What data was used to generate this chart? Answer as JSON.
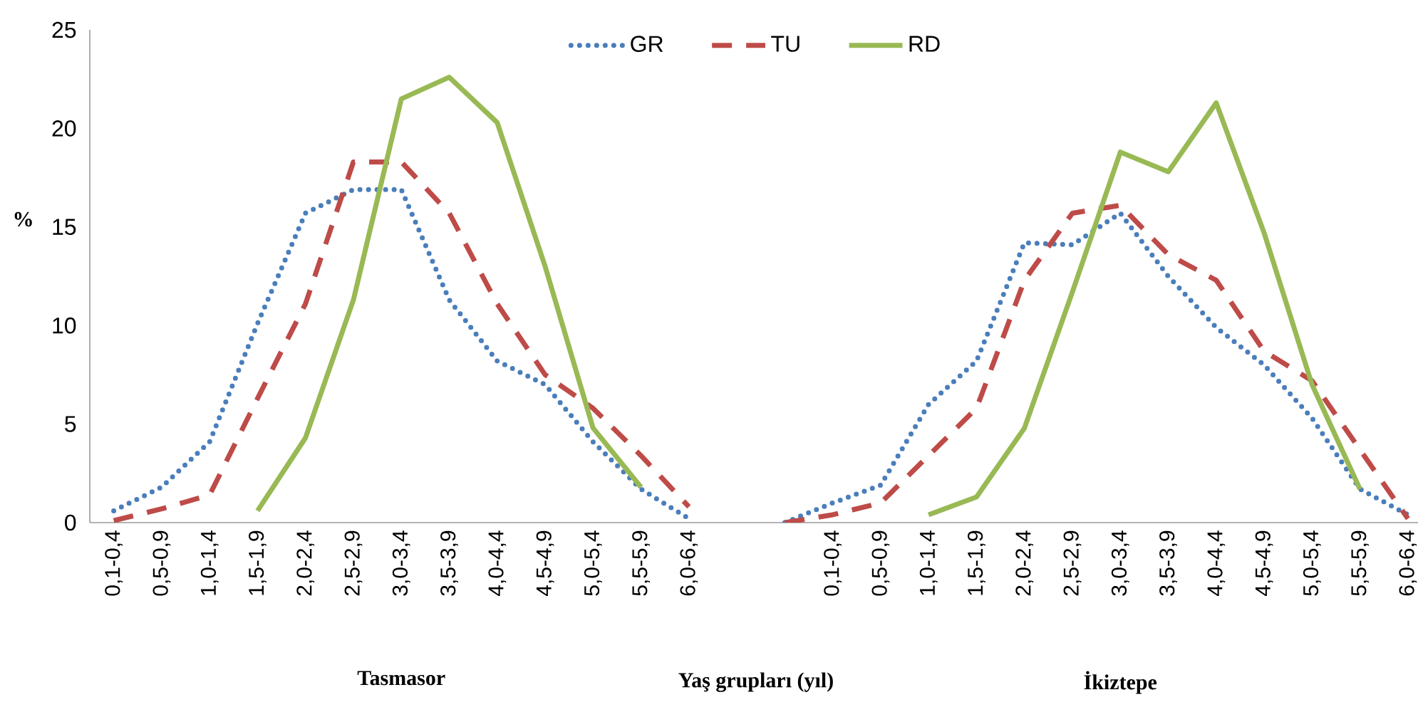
{
  "chart_data": {
    "type": "line",
    "xlabel": "Yaş grupları (yıl)",
    "ylabel": "%",
    "categories": [
      "0,1-0,4",
      "0,5-0,9",
      "1,0-1,4",
      "1,5-1,9",
      "2,0-2,4",
      "2,5-2,9",
      "3,0-3,4",
      "3,5-3,9",
      "4,0-4,4",
      "4,5-4,9",
      "5,0-5,4",
      "5,5-5,9",
      "6,0-6,4",
      null,
      null,
      "0,1-0,4",
      "0,5-0,9",
      "1,0-1,4",
      "1,5-1,9",
      "2,0-2,4",
      "2,5-2,9",
      "3,0-3,4",
      "3,5-3,9",
      "4,0-4,4",
      "4,5-4,9",
      "5,0-5,4",
      "5,5-5,9",
      "6,0-6,4"
    ],
    "series": [
      {
        "name": "GR",
        "color": "#4a7ebb",
        "line_style": "dotted",
        "values": [
          0.6,
          1.8,
          4.1,
          10.1,
          15.7,
          16.9,
          16.9,
          11.3,
          8.2,
          7.0,
          4.1,
          1.7,
          0.2,
          null,
          0,
          1.0,
          1.9,
          6.0,
          8.2,
          14.2,
          14.1,
          15.7,
          12.5,
          9.9,
          8.0,
          5.3,
          1.7,
          0.4
        ]
      },
      {
        "name": "TU",
        "color": "#be4b48",
        "line_style": "dashed",
        "values": [
          0.1,
          0.7,
          1.4,
          6.3,
          11.1,
          18.3,
          18.3,
          15.7,
          11.1,
          7.5,
          5.8,
          3.4,
          0.8,
          null,
          0,
          0.4,
          1.0,
          3.4,
          5.8,
          12.3,
          15.7,
          16.1,
          13.6,
          12.3,
          8.7,
          7.2,
          3.7,
          0.2
        ]
      },
      {
        "name": "RD",
        "color": "#98b954",
        "line_style": "solid",
        "values": [
          null,
          null,
          null,
          0.6,
          4.3,
          11.3,
          21.5,
          22.6,
          20.3,
          13.0,
          4.8,
          1.8,
          null,
          null,
          null,
          null,
          null,
          0.4,
          1.3,
          4.8,
          11.7,
          18.8,
          17.8,
          21.3,
          14.7,
          7.0,
          1.7,
          null
        ]
      }
    ],
    "ylim": [
      0,
      25
    ],
    "yticks": [
      0,
      5,
      10,
      15,
      20,
      25
    ],
    "legend": "top",
    "annotations": [
      "Tasmasor",
      "İkiztepe"
    ]
  }
}
